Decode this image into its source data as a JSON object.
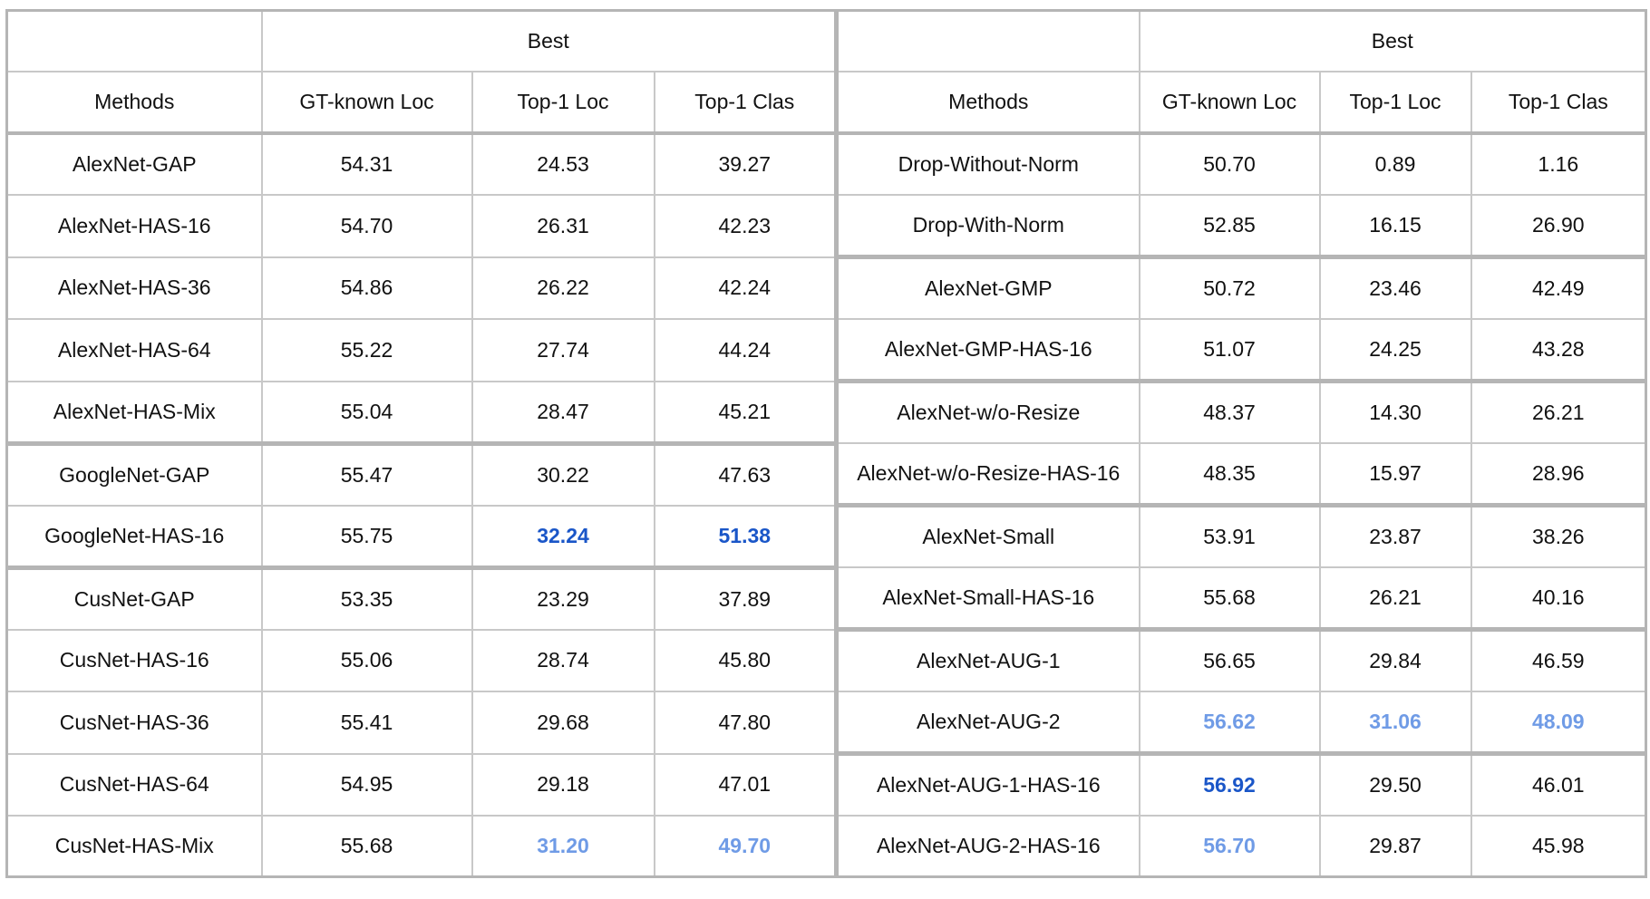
{
  "header": {
    "group_label_left": "Best",
    "group_label_right": "Best",
    "columns": [
      "Methods",
      "GT-known Loc",
      "Top-1 Loc",
      "Top-1 Clas"
    ]
  },
  "colors": {
    "best_strong": "#1a56c8",
    "best_second": "#6f9be6"
  },
  "left_rows": [
    {
      "method": "AlexNet-GAP",
      "gt": "54.31",
      "loc": "24.53",
      "clas": "39.27"
    },
    {
      "method": "AlexNet-HAS-16",
      "gt": "54.70",
      "loc": "26.31",
      "clas": "42.23"
    },
    {
      "method": "AlexNet-HAS-36",
      "gt": "54.86",
      "loc": "26.22",
      "clas": "42.24"
    },
    {
      "method": "AlexNet-HAS-64",
      "gt": "55.22",
      "loc": "27.74",
      "clas": "44.24"
    },
    {
      "method": "AlexNet-HAS-Mix",
      "gt": "55.04",
      "loc": "28.47",
      "clas": "45.21"
    },
    {
      "method": "GoogleNet-GAP",
      "gt": "55.47",
      "loc": "30.22",
      "clas": "47.63"
    },
    {
      "method": "GoogleNet-HAS-16",
      "gt": "55.75",
      "loc": "32.24",
      "clas": "51.38"
    },
    {
      "method": "CusNet-GAP",
      "gt": "53.35",
      "loc": "23.29",
      "clas": "37.89"
    },
    {
      "method": "CusNet-HAS-16",
      "gt": "55.06",
      "loc": "28.74",
      "clas": "45.80"
    },
    {
      "method": "CusNet-HAS-36",
      "gt": "55.41",
      "loc": "29.68",
      "clas": "47.80"
    },
    {
      "method": "CusNet-HAS-64",
      "gt": "54.95",
      "loc": "29.18",
      "clas": "47.01"
    },
    {
      "method": "CusNet-HAS-Mix",
      "gt": "55.68",
      "loc": "31.20",
      "clas": "49.70"
    }
  ],
  "right_rows": [
    {
      "method": "Drop-Without-Norm",
      "gt": "50.70",
      "loc": "0.89",
      "clas": "1.16"
    },
    {
      "method": "Drop-With-Norm",
      "gt": "52.85",
      "loc": "16.15",
      "clas": "26.90"
    },
    {
      "method": "AlexNet-GMP",
      "gt": "50.72",
      "loc": "23.46",
      "clas": "42.49"
    },
    {
      "method": "AlexNet-GMP-HAS-16",
      "gt": "51.07",
      "loc": "24.25",
      "clas": "43.28"
    },
    {
      "method": "AlexNet-w/o-Resize",
      "gt": "48.37",
      "loc": "14.30",
      "clas": "26.21"
    },
    {
      "method": "AlexNet-w/o-Resize-HAS-16",
      "gt": "48.35",
      "loc": "15.97",
      "clas": "28.96"
    },
    {
      "method": "AlexNet-Small",
      "gt": "53.91",
      "loc": "23.87",
      "clas": "38.26"
    },
    {
      "method": "AlexNet-Small-HAS-16",
      "gt": "55.68",
      "loc": "26.21",
      "clas": "40.16"
    },
    {
      "method": "AlexNet-AUG-1",
      "gt": "56.65",
      "loc": "29.84",
      "clas": "46.59"
    },
    {
      "method": "AlexNet-AUG-2",
      "gt": "56.62",
      "loc": "31.06",
      "clas": "48.09"
    },
    {
      "method": "AlexNet-AUG-1-HAS-16",
      "gt": "56.92",
      "loc": "29.50",
      "clas": "46.01"
    },
    {
      "method": "AlexNet-AUG-2-HAS-16",
      "gt": "56.70",
      "loc": "29.87",
      "clas": "45.98"
    }
  ]
}
